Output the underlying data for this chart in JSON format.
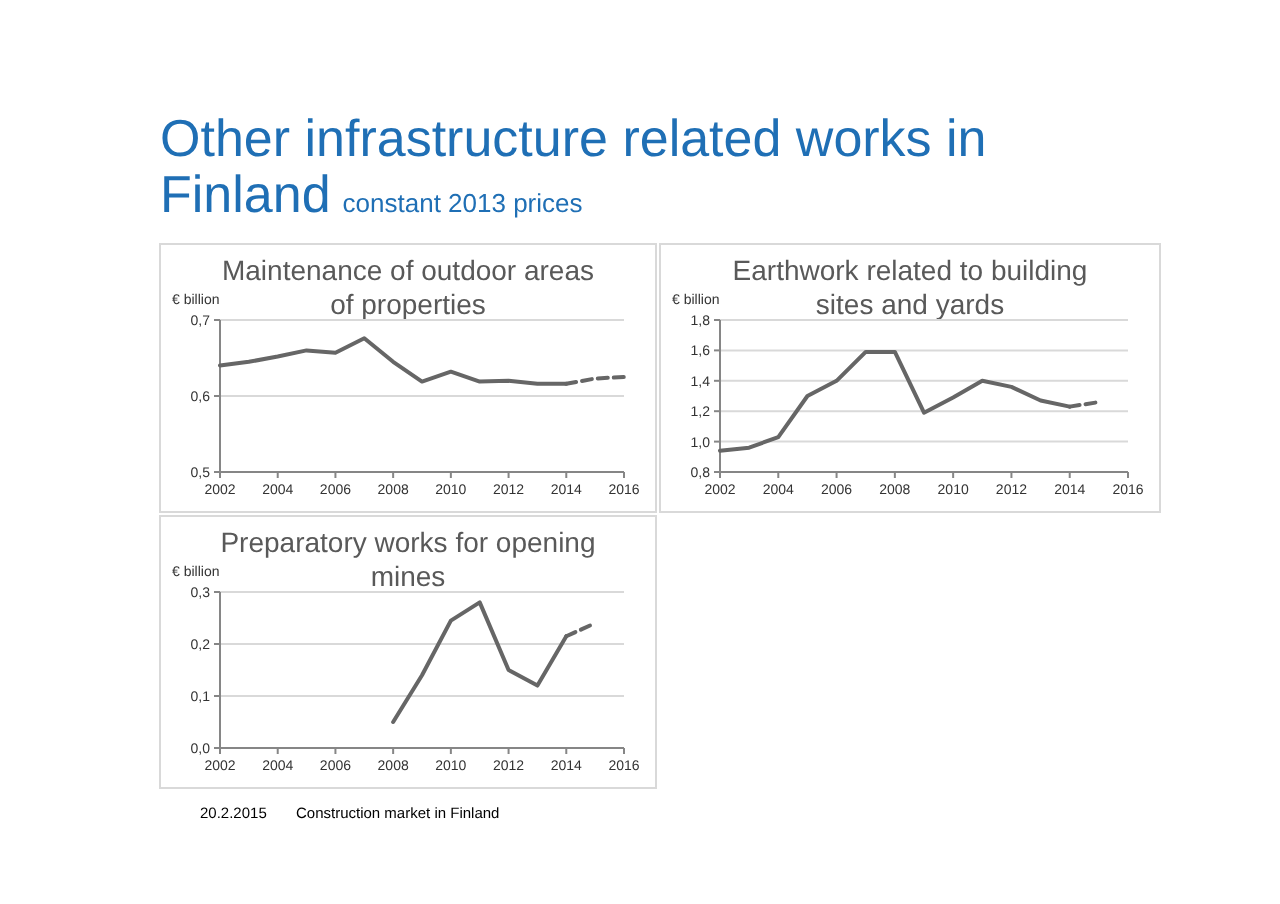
{
  "chart_data": [
    {
      "type": "line",
      "title": "Maintenance of outdoor areas of properties",
      "ylabel": "€ billion",
      "xlim": [
        2002,
        2016
      ],
      "xticks": [
        2002,
        2004,
        2006,
        2008,
        2010,
        2012,
        2014,
        2016
      ],
      "ylim": [
        0.5,
        0.7
      ],
      "yticks": [
        {
          "value": 0.5,
          "label": "0,5"
        },
        {
          "value": 0.6,
          "label": "0,6"
        },
        {
          "value": 0.7,
          "label": "0,7"
        }
      ],
      "grid": "y",
      "marker": "none",
      "series": [
        {
          "color": "#666666",
          "line_style": "solid",
          "x": [
            2002,
            2003,
            2004,
            2005,
            2006,
            2007,
            2008,
            2009,
            2010,
            2011,
            2012,
            2013,
            2014
          ],
          "values": [
            0.64,
            0.645,
            0.652,
            0.66,
            0.657,
            0.676,
            0.645,
            0.619,
            0.632,
            0.619,
            0.62,
            0.616,
            0.616
          ]
        },
        {
          "color": "#666666",
          "line_style": "dashed",
          "x": [
            2014,
            2015,
            2016
          ],
          "values": [
            0.616,
            0.623,
            0.625
          ]
        }
      ]
    },
    {
      "type": "line",
      "title": "Earthwork related to building sites and yards",
      "ylabel": "€ billion",
      "xlim": [
        2002,
        2016
      ],
      "xticks": [
        2002,
        2004,
        2006,
        2008,
        2010,
        2012,
        2014,
        2016
      ],
      "ylim": [
        0.8,
        1.8
      ],
      "yticks": [
        {
          "value": 0.8,
          "label": "0,8"
        },
        {
          "value": 1.0,
          "label": "1,0"
        },
        {
          "value": 1.2,
          "label": "1,2"
        },
        {
          "value": 1.4,
          "label": "1,4"
        },
        {
          "value": 1.6,
          "label": "1,6"
        },
        {
          "value": 1.8,
          "label": "1,8"
        }
      ],
      "grid": "y",
      "marker": "none",
      "series": [
        {
          "color": "#666666",
          "line_style": "solid",
          "x": [
            2002,
            2003,
            2004,
            2005,
            2006,
            2007,
            2008,
            2009,
            2010,
            2011,
            2012,
            2013,
            2014
          ],
          "values": [
            0.94,
            0.96,
            1.03,
            1.3,
            1.4,
            1.59,
            1.59,
            1.19,
            1.29,
            1.4,
            1.36,
            1.27,
            1.23
          ]
        },
        {
          "color": "#666666",
          "line_style": "dashed",
          "x": [
            2014,
            2015
          ],
          "values": [
            1.23,
            1.26
          ]
        }
      ]
    },
    {
      "type": "line",
      "title": "Preparatory works for opening mines",
      "ylabel": "€ billion",
      "xlim": [
        2002,
        2016
      ],
      "xticks": [
        2002,
        2004,
        2006,
        2008,
        2010,
        2012,
        2014,
        2016
      ],
      "ylim": [
        0,
        0.3
      ],
      "yticks": [
        {
          "value": 0,
          "label": "0,0"
        },
        {
          "value": 0.1,
          "label": "0,1"
        },
        {
          "value": 0.2,
          "label": "0,2"
        },
        {
          "value": 0.3,
          "label": "0,3"
        }
      ],
      "grid": "y",
      "marker": "none",
      "series": [
        {
          "color": "#666666",
          "line_style": "solid",
          "x": [
            2008,
            2009,
            2010,
            2011,
            2012,
            2013,
            2014
          ],
          "values": [
            0.05,
            0.14,
            0.245,
            0.28,
            0.15,
            0.12,
            0.215
          ]
        },
        {
          "color": "#666666",
          "line_style": "dashed",
          "x": [
            2014,
            2015
          ],
          "values": [
            0.215,
            0.24
          ]
        }
      ]
    },
    {
      "type": "other",
      "title": "Other infrastructure related works in Finland",
      "subtitle": "constant 2013 prices",
      "annotations": [
        "20.2.2015",
        "Construction market in Finland"
      ]
    }
  ]
}
